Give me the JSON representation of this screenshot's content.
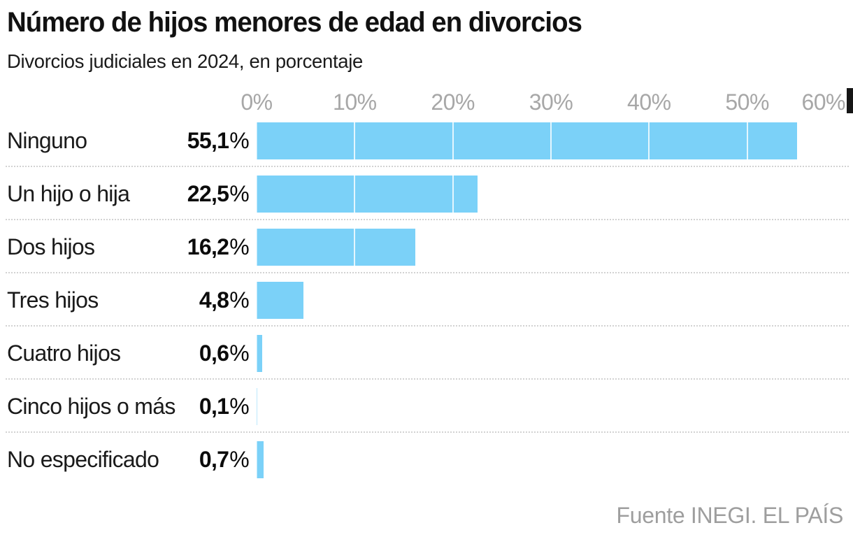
{
  "header": {
    "title": "Número de hijos menores de edad en divorcios",
    "subtitle": "Divorcios judiciales en 2024, en porcentaje"
  },
  "footer": {
    "source": "Fuente INEGI. EL PAÍS"
  },
  "colors": {
    "bar": "#7BD1F8",
    "gridline_over_bar": "rgba(255,255,255,0.8)",
    "axis_label": "#A7A7A7",
    "separator": "#D2D2D2",
    "title": "#111111",
    "text": "#1A1A1A",
    "source": "#9E9E9E",
    "background": "#FFFFFF"
  },
  "chart_data": {
    "type": "bar",
    "orientation": "horizontal",
    "title": "Número de hijos menores de edad en divorcios",
    "subtitle": "Divorcios judiciales en 2024, en porcentaje",
    "unit": "%",
    "xlim": [
      0,
      60
    ],
    "x_tick_values": [
      0,
      10,
      20,
      30,
      40,
      50,
      60
    ],
    "x_tick_labels": [
      "0%",
      "10%",
      "20%",
      "30%",
      "40%",
      "50%",
      "60%"
    ],
    "grid": "vertical gridlines at 10% steps, drawn white over bars",
    "legend": false,
    "categories": [
      "Ninguno",
      "Un hijo o hija",
      "Dos hijos",
      "Tres hijos",
      "Cuatro hijos",
      "Cinco hijos o más",
      "No especificado"
    ],
    "values": [
      55.1,
      22.5,
      16.2,
      4.8,
      0.6,
      0.1,
      0.7
    ],
    "rows": [
      {
        "label": "Ninguno",
        "value": 55.1,
        "value_display": "55,1"
      },
      {
        "label": "Un hijo o hija",
        "value": 22.5,
        "value_display": "22,5"
      },
      {
        "label": "Dos hijos",
        "value": 16.2,
        "value_display": "16,2"
      },
      {
        "label": "Tres hijos",
        "value": 4.8,
        "value_display": "4,8"
      },
      {
        "label": "Cuatro hijos",
        "value": 0.6,
        "value_display": "0,6"
      },
      {
        "label": "Cinco hijos o más",
        "value": 0.1,
        "value_display": "0,1"
      },
      {
        "label": "No especificado",
        "value": 0.7,
        "value_display": "0,7"
      }
    ],
    "source": "Fuente INEGI. EL PAÍS"
  }
}
